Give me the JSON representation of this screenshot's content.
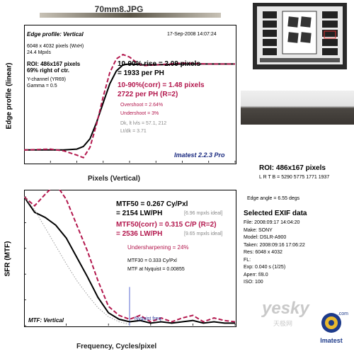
{
  "window": {
    "file_title": "70mm8.JPG"
  },
  "edge_panel": {
    "header": "Edge profile: Vertical",
    "timestamp": "17-Sep-2008 14:07:24",
    "dims": "6048 x 4032 pixels (WxH)",
    "mpxls": "24.4 Mpxls",
    "roi_line1": "ROI: 486x167 pixels",
    "roi_line2": "69% right of ctr.",
    "channel": "Y-channel (YR69)",
    "gamma": "Gamma = 0.5",
    "rise_line1": "10-90% rise = 2.09 pixels",
    "rise_line2": "= 1933 per PH",
    "corr_line1": "10-90%(corr) = 1.48 pixels",
    "corr_line2": "2722 per PH  (R=2)",
    "overshoot": "Overshoot = 2.64%",
    "undershoot": "Undershoot = 3%",
    "dk": "Dk, lt lvls = 57.1, 212",
    "ltdk": "Lt/dk = 3.71",
    "brand": "Imatest 2.2.3 Pro",
    "ylabel": "Edge profile (linear)",
    "xlabel": "Pixels (Vertical)"
  },
  "mtf_panel": {
    "mtf50": "MTF50 = 0.267 Cy/Pxl",
    "mtf50_lw": "= 2154 LW/PH",
    "mtf50_ideal": "[6.96 mpxls ideal]",
    "mtf50corr": "MTF50(corr) = 0.315 C/P  (R=2)",
    "mtf50corr_lw": "= 2536 LW/PH",
    "mtf50corr_ideal": "[9.65 mpxls ideal]",
    "undersharp": "Undersharpening = 24%",
    "mtf30": "MTF30 = 0.333 Cy/Pxl",
    "nyq": "MTF at Nyquist = 0.00855",
    "nyq_label": "Nyquist freq.",
    "label": "MTF: Vertical",
    "ylabel": "SFR (MTF)",
    "xlabel": "Frequency, Cycles/pixel"
  },
  "side": {
    "roi_title": "ROI: 486x167 pixels",
    "lrtb": "L R T B = 5290 5775  1771 1937",
    "edge_angle": "Edge angle = 6.55 degs",
    "exif_title": "Selected EXIF data",
    "exif": [
      "File:  2008:09:17 14:04:20",
      "Make:  SONY",
      "Model:  DSLR-A900",
      "Taken:  2008:09:16 17:06:22",
      "Res:   6048 x 4032",
      "FL:",
      "Exp:   0.040 s  (1/25)",
      "Aperr:  f/8.0",
      "ISO:   100"
    ],
    "watermark": "yesky",
    "watermark_sub": "天极网",
    "logo_text": "Imatest",
    "logo_url": ".com"
  },
  "chart_data": [
    {
      "type": "line",
      "title": "Edge profile: Vertical",
      "xlabel": "Pixels (Vertical)",
      "ylabel": "Edge profile (linear)",
      "xlim": [
        -6,
        10
      ],
      "xticks": [
        -6,
        -4,
        -2,
        0,
        2,
        4,
        6,
        8,
        10
      ],
      "series": [
        {
          "color": "#000000",
          "style": "solid",
          "x": [
            -6,
            -4,
            -3,
            -2,
            -1.5,
            -1,
            -0.5,
            0,
            0.5,
            1,
            1.5,
            2,
            3,
            4,
            6,
            8,
            10
          ],
          "y": [
            0.0,
            0.0,
            0.0,
            0.01,
            0.04,
            0.13,
            0.32,
            0.55,
            0.77,
            0.92,
            0.99,
            1.0,
            0.99,
            0.99,
            1.0,
            1.0,
            1.0
          ]
        },
        {
          "color": "#b3174d",
          "style": "dashed",
          "x": [
            -6,
            -4,
            -3,
            -2,
            -1.5,
            -1,
            -0.5,
            0,
            0.5,
            1,
            1.5,
            2,
            2.5,
            3,
            4,
            6,
            8,
            10
          ],
          "y": [
            0.0,
            0.01,
            -0.01,
            -0.06,
            -0.09,
            0.03,
            0.3,
            0.62,
            0.9,
            1.06,
            1.11,
            1.08,
            1.02,
            0.98,
            0.99,
            1.01,
            1.0,
            1.0
          ]
        }
      ]
    },
    {
      "type": "line",
      "title": "MTF: Vertical",
      "xlabel": "Frequency, Cycles/pixel",
      "ylabel": "SFR (MTF)",
      "xlim": [
        0,
        1
      ],
      "ylim": [
        0,
        1
      ],
      "xticks": [
        0,
        0.2,
        0.4,
        0.6,
        0.8,
        1
      ],
      "yticks": [
        0,
        0.2,
        0.4,
        0.6,
        0.8,
        1
      ],
      "series": [
        {
          "color": "#000000",
          "style": "solid",
          "x": [
            0,
            0.05,
            0.1,
            0.15,
            0.2,
            0.25,
            0.3,
            0.35,
            0.4,
            0.45,
            0.5,
            0.55,
            0.6,
            0.65,
            0.7,
            0.75,
            0.8,
            0.85,
            0.9,
            0.95,
            1.0
          ],
          "y": [
            1.0,
            0.88,
            0.84,
            0.78,
            0.68,
            0.53,
            0.38,
            0.22,
            0.1,
            0.05,
            0.03,
            0.04,
            0.02,
            0.03,
            0.02,
            0.03,
            0.04,
            0.02,
            0.03,
            0.02,
            0.02
          ]
        },
        {
          "color": "#b3174d",
          "style": "dashed",
          "x": [
            0,
            0.05,
            0.1,
            0.15,
            0.2,
            0.25,
            0.3,
            0.35,
            0.4,
            0.45,
            0.5,
            0.55,
            0.6,
            0.65,
            0.7,
            0.75,
            0.8,
            0.85,
            0.9,
            0.95,
            1.0
          ],
          "y": [
            1.0,
            0.93,
            1.02,
            1.1,
            0.98,
            0.78,
            0.58,
            0.35,
            0.15,
            0.08,
            0.05,
            0.08,
            0.03,
            0.06,
            0.03,
            0.06,
            0.08,
            0.03,
            0.06,
            0.04,
            0.03
          ]
        },
        {
          "color": "#9a9a9a",
          "style": "dotted",
          "x": [
            0,
            0.05,
            0.1,
            0.15,
            0.2,
            0.25,
            0.3,
            0.35,
            0.4,
            0.45,
            0.5
          ],
          "y": [
            1.0,
            0.9,
            0.76,
            0.62,
            0.48,
            0.35,
            0.24,
            0.14,
            0.07,
            0.03,
            0.01
          ]
        }
      ],
      "markers": [
        {
          "x": 0.5,
          "label": "Nyquist freq."
        }
      ]
    }
  ]
}
